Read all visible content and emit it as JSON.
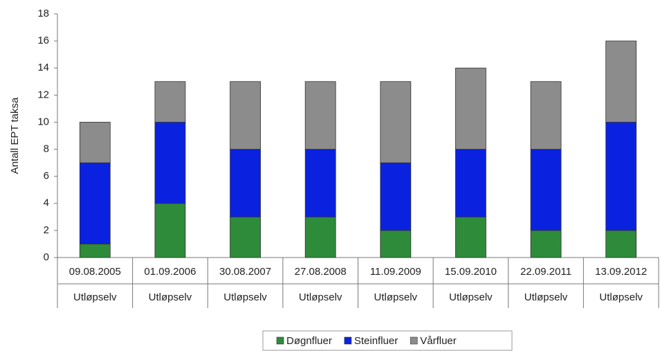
{
  "chart_data": {
    "type": "stacked_bar",
    "y_label": "Antall EPT taksa",
    "categories": [
      "09.08.2005",
      "01.09.2006",
      "30.08.2007",
      "27.08.2008",
      "11.09.2009",
      "15.09.2010",
      "22.09.2011",
      "13.09.2012"
    ],
    "subcategories": [
      "Utløpselv",
      "Utløpselv",
      "Utløpselv",
      "Utløpselv",
      "Utløpselv",
      "Utløpselv",
      "Utløpselv",
      "Utløpselv"
    ],
    "series": [
      {
        "name": "Døgnfluer",
        "color": "#2e8b3a",
        "values": [
          1,
          4,
          3,
          3,
          2,
          3,
          2,
          2
        ]
      },
      {
        "name": "Steinfluer",
        "color": "#0a22e0",
        "values": [
          6,
          6,
          5,
          5,
          5,
          5,
          6,
          8
        ]
      },
      {
        "name": "Vårfluer",
        "color": "#8c8c8c",
        "values": [
          3,
          3,
          5,
          5,
          6,
          6,
          5,
          6
        ]
      }
    ],
    "ylim": [
      0,
      18
    ],
    "yticks": [
      0,
      2,
      4,
      6,
      8,
      10,
      12,
      14,
      16,
      18
    ],
    "legend": "bottom"
  }
}
